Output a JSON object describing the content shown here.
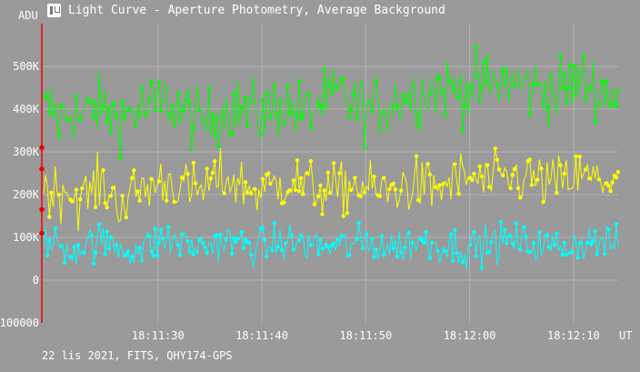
{
  "window": {
    "title": "Light Curve - Aperture Photometry, Average Background",
    "icon": "app-logo-icon"
  },
  "footer": {
    "text": "22 lis 2021, FITS, QHY174-GPS"
  },
  "colors": {
    "background": "#9a9a9a",
    "grid": "#b4b4b4",
    "cursor": "#ee0000",
    "series": [
      "#00ff00",
      "#ffff00",
      "#00ffff"
    ]
  },
  "chart_data": {
    "type": "line",
    "title": "Light Curve - Aperture Photometry, Average Background",
    "ylabel": "ADU",
    "xlabel": "UT",
    "ylim": [
      -100000,
      600000
    ],
    "xlim": [
      "18:11:18.9",
      "18:12:14.3"
    ],
    "y_ticks": [
      0,
      100000,
      200000,
      300000,
      400000,
      500000
    ],
    "y_tick_labels": [
      "0",
      "100K",
      "200K",
      "300K",
      "400K",
      "500K"
    ],
    "y_min_label": "-100000",
    "x_ticks": [
      "18:11:30",
      "18:11:40",
      "18:11:50",
      "18:12:00",
      "18:12:10"
    ],
    "grid": true,
    "series": [
      {
        "color": "#00ff00",
        "values": [
          400000,
          405000,
          375000,
          390000,
          395000,
          380000,
          385000,
          410000,
          400000,
          392000,
          388000,
          382000,
          395000,
          402000,
          398000,
          405000,
          412000,
          420000,
          410000,
          398000,
          385000,
          372000,
          368000,
          375000,
          390000,
          402000,
          408000,
          400000,
          395000,
          392000,
          390000,
          398000,
          405000,
          410000,
          402000,
          395000,
          390000,
          398000,
          410000,
          420000,
          428000,
          432000,
          420000,
          410000,
          405000,
          398000,
          402000,
          412000,
          420000,
          425000,
          430000,
          435000,
          440000,
          445000,
          448000,
          452000,
          450000,
          445000,
          448000,
          452000,
          455000,
          458000,
          460000,
          462000,
          465000,
          460000,
          455000,
          450000,
          448000,
          445000,
          440000,
          445000,
          452000,
          460000,
          465000,
          458000,
          450000,
          445000,
          440000,
          425000
        ]
      },
      {
        "color": "#ffff00",
        "values": [
          215000,
          210000,
          205000,
          220000,
          195000,
          190000,
          200000,
          215000,
          225000,
          205000,
          190000,
          180000,
          195000,
          210000,
          215000,
          220000,
          230000,
          235000,
          228000,
          220000,
          210000,
          205000,
          215000,
          225000,
          235000,
          240000,
          232000,
          225000,
          218000,
          212000,
          208000,
          215000,
          222000,
          230000,
          235000,
          228000,
          220000,
          215000,
          212000,
          210000,
          205000,
          212000,
          220000,
          225000,
          218000,
          212000,
          208000,
          205000,
          210000,
          218000,
          222000,
          225000,
          220000,
          215000,
          212000,
          220000,
          228000,
          235000,
          240000,
          238000,
          232000,
          228000,
          230000,
          235000,
          238000,
          240000,
          242000,
          238000,
          232000,
          228000,
          225000,
          230000,
          235000,
          240000,
          242000,
          238000,
          235000,
          232000,
          238000,
          245000
        ]
      },
      {
        "color": "#00ffff",
        "values": [
          85000,
          80000,
          90000,
          75000,
          70000,
          80000,
          85000,
          90000,
          88000,
          85000,
          80000,
          75000,
          70000,
          72000,
          78000,
          85000,
          90000,
          95000,
          92000,
          88000,
          82000,
          78000,
          80000,
          85000,
          88000,
          90000,
          88000,
          85000,
          82000,
          80000,
          78000,
          82000,
          85000,
          88000,
          90000,
          88000,
          85000,
          82000,
          80000,
          78000,
          75000,
          78000,
          82000,
          85000,
          88000,
          85000,
          82000,
          80000,
          78000,
          82000,
          85000,
          88000,
          90000,
          88000,
          85000,
          82000,
          80000,
          78000,
          76000,
          78000,
          82000,
          85000,
          88000,
          90000,
          92000,
          90000,
          88000,
          85000,
          82000,
          80000,
          78000,
          80000,
          82000,
          85000,
          88000,
          90000,
          92000,
          88000,
          85000,
          82000
        ]
      }
    ],
    "cursor_markers": [
      310000,
      260000,
      165000,
      110000
    ]
  }
}
